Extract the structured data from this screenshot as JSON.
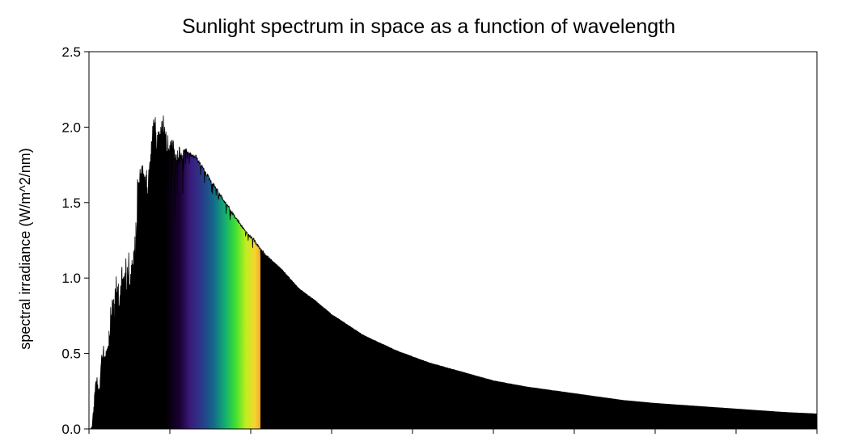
{
  "chart_data": {
    "type": "area",
    "title": "Sunlight spectrum in space as a function of wavelength",
    "xlabel": "",
    "ylabel": "spectral irradiance (W/m^2/nm)",
    "xlim": [
      250,
      2500
    ],
    "ylim": [
      0,
      2.5
    ],
    "y_ticks": [
      "0.0",
      "0.5",
      "1.0",
      "1.5",
      "2.0",
      "2.5"
    ],
    "x_ticks": [
      250,
      500,
      750,
      1000,
      1250,
      1500,
      1750,
      2000,
      2250,
      2500
    ],
    "x_tick_labels_visible": false,
    "grid": false,
    "fill_color": "#000000",
    "visible_band_nm": [
      380,
      780
    ],
    "series": [
      {
        "x": [
          250,
          255,
          260,
          265,
          270,
          275,
          280,
          285,
          290,
          295,
          300,
          305,
          310,
          315,
          320,
          330,
          340,
          350,
          360,
          370,
          380,
          390,
          400,
          410,
          420,
          430,
          440,
          450,
          460,
          470,
          480,
          490,
          500,
          510,
          520,
          530,
          540,
          550,
          560,
          570,
          580,
          590,
          600,
          610,
          620,
          630,
          640,
          650,
          660,
          670,
          680,
          690,
          700,
          720,
          740,
          760,
          780,
          800,
          850,
          900,
          950,
          1000,
          1100,
          1200,
          1300,
          1400,
          1500,
          1600,
          1700,
          1800,
          1900,
          2000,
          2100,
          2200,
          2300,
          2400,
          2500
        ],
        "values": [
          0.0,
          0.0,
          0.02,
          0.18,
          0.32,
          0.36,
          0.25,
          0.33,
          0.55,
          0.59,
          0.53,
          0.62,
          0.68,
          0.78,
          0.85,
          1.0,
          1.03,
          1.08,
          1.09,
          1.21,
          1.15,
          1.22,
          1.67,
          1.74,
          1.78,
          1.62,
          1.85,
          2.08,
          2.06,
          2.02,
          2.08,
          1.96,
          1.93,
          1.92,
          1.85,
          1.87,
          1.85,
          1.86,
          1.84,
          1.82,
          1.82,
          1.78,
          1.75,
          1.71,
          1.68,
          1.64,
          1.62,
          1.58,
          1.55,
          1.51,
          1.49,
          1.45,
          1.42,
          1.36,
          1.3,
          1.26,
          1.2,
          1.15,
          1.05,
          0.93,
          0.85,
          0.76,
          0.62,
          0.52,
          0.44,
          0.38,
          0.32,
          0.28,
          0.25,
          0.22,
          0.19,
          0.17,
          0.155,
          0.14,
          0.125,
          0.11,
          0.1
        ]
      }
    ]
  }
}
